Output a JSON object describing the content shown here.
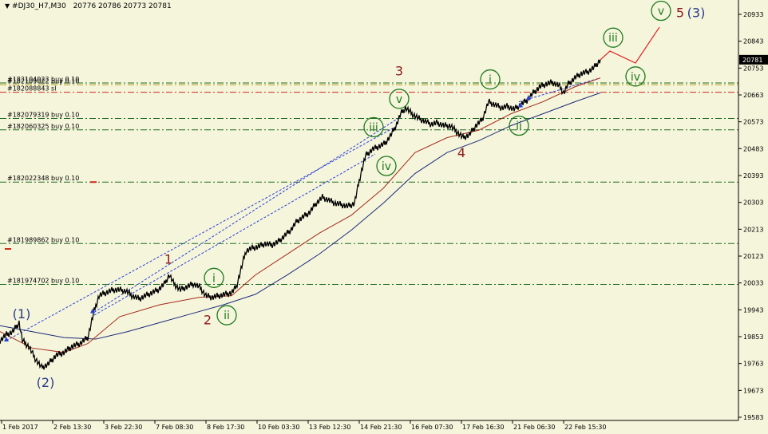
{
  "header": {
    "symbol": "#DJ30_H7,M30",
    "ohlc": "20776 20786 20773 20781"
  },
  "chart_data": {
    "type": "line",
    "title": "#DJ30_H7,M30",
    "ylim": [
      19583,
      20990
    ],
    "y_ticks": [
      "20933",
      "20843",
      "20753",
      "20663",
      "20573",
      "20483",
      "20393",
      "20303",
      "20213",
      "20123",
      "20033",
      "19943",
      "19853",
      "19763",
      "19673",
      "19583"
    ],
    "x_ticks": [
      "1 Feb 2017",
      "2 Feb 13:30",
      "3 Feb 22:30",
      "7 Feb 08:30",
      "8 Feb 17:30",
      "10 Feb 03:30",
      "13 Feb 12:30",
      "14 Feb 21:30",
      "16 Feb 07:30",
      "17 Feb 16:30",
      "21 Feb 06:30",
      "22 Feb 15:30"
    ],
    "current_price": "20781",
    "price_path": [
      [
        0,
        19840
      ],
      [
        8,
        19860
      ],
      [
        16,
        19870
      ],
      [
        24,
        19900
      ],
      [
        28,
        19840
      ],
      [
        36,
        19820
      ],
      [
        44,
        19780
      ],
      [
        52,
        19750
      ],
      [
        60,
        19760
      ],
      [
        70,
        19790
      ],
      [
        80,
        19800
      ],
      [
        90,
        19820
      ],
      [
        100,
        19830
      ],
      [
        110,
        19850
      ],
      [
        118,
        19940
      ],
      [
        124,
        19990
      ],
      [
        132,
        20000
      ],
      [
        142,
        20010
      ],
      [
        150,
        20010
      ],
      [
        158,
        20005
      ],
      [
        166,
        19990
      ],
      [
        174,
        19980
      ],
      [
        182,
        19990
      ],
      [
        190,
        20000
      ],
      [
        198,
        20010
      ],
      [
        206,
        20030
      ],
      [
        212,
        20060
      ],
      [
        218,
        20030
      ],
      [
        226,
        20010
      ],
      [
        234,
        20020
      ],
      [
        242,
        20030
      ],
      [
        250,
        20020
      ],
      [
        258,
        19990
      ],
      [
        266,
        19985
      ],
      [
        274,
        19990
      ],
      [
        282,
        19995
      ],
      [
        290,
        20000
      ],
      [
        296,
        20020
      ],
      [
        302,
        20080
      ],
      [
        308,
        20140
      ],
      [
        316,
        20150
      ],
      [
        324,
        20155
      ],
      [
        332,
        20165
      ],
      [
        340,
        20160
      ],
      [
        348,
        20170
      ],
      [
        356,
        20190
      ],
      [
        364,
        20210
      ],
      [
        372,
        20240
      ],
      [
        380,
        20255
      ],
      [
        388,
        20270
      ],
      [
        396,
        20300
      ],
      [
        404,
        20320
      ],
      [
        412,
        20310
      ],
      [
        420,
        20300
      ],
      [
        428,
        20295
      ],
      [
        436,
        20290
      ],
      [
        444,
        20300
      ],
      [
        452,
        20400
      ],
      [
        458,
        20460
      ],
      [
        466,
        20480
      ],
      [
        474,
        20490
      ],
      [
        482,
        20500
      ],
      [
        490,
        20530
      ],
      [
        496,
        20560
      ],
      [
        502,
        20600
      ],
      [
        508,
        20620
      ],
      [
        516,
        20600
      ],
      [
        524,
        20585
      ],
      [
        532,
        20575
      ],
      [
        540,
        20565
      ],
      [
        548,
        20570
      ],
      [
        556,
        20560
      ],
      [
        564,
        20560
      ],
      [
        572,
        20540
      ],
      [
        580,
        20520
      ],
      [
        588,
        20530
      ],
      [
        596,
        20560
      ],
      [
        604,
        20580
      ],
      [
        612,
        20640
      ],
      [
        620,
        20630
      ],
      [
        628,
        20620
      ],
      [
        636,
        20625
      ],
      [
        644,
        20615
      ],
      [
        652,
        20630
      ],
      [
        660,
        20645
      ],
      [
        668,
        20670
      ],
      [
        676,
        20690
      ],
      [
        684,
        20700
      ],
      [
        692,
        20705
      ],
      [
        700,
        20695
      ],
      [
        706,
        20670
      ],
      [
        712,
        20700
      ],
      [
        720,
        20720
      ],
      [
        728,
        20735
      ],
      [
        736,
        20740
      ],
      [
        744,
        20755
      ],
      [
        752,
        20781
      ]
    ],
    "ma_red": [
      [
        0,
        19870
      ],
      [
        40,
        19815
      ],
      [
        80,
        19800
      ],
      [
        110,
        19830
      ],
      [
        150,
        19920
      ],
      [
        200,
        19960
      ],
      [
        250,
        19985
      ],
      [
        290,
        19990
      ],
      [
        320,
        20060
      ],
      [
        360,
        20130
      ],
      [
        400,
        20200
      ],
      [
        440,
        20260
      ],
      [
        480,
        20350
      ],
      [
        520,
        20470
      ],
      [
        560,
        20520
      ],
      [
        600,
        20545
      ],
      [
        640,
        20600
      ],
      [
        680,
        20640
      ],
      [
        720,
        20690
      ],
      [
        752,
        20720
      ]
    ],
    "ma_blue": [
      [
        0,
        19890
      ],
      [
        40,
        19870
      ],
      [
        80,
        19850
      ],
      [
        120,
        19845
      ],
      [
        160,
        19870
      ],
      [
        200,
        19900
      ],
      [
        240,
        19930
      ],
      [
        280,
        19960
      ],
      [
        320,
        19995
      ],
      [
        360,
        20060
      ],
      [
        400,
        20130
      ],
      [
        440,
        20210
      ],
      [
        480,
        20300
      ],
      [
        520,
        20400
      ],
      [
        560,
        20470
      ],
      [
        600,
        20510
      ],
      [
        640,
        20560
      ],
      [
        680,
        20600
      ],
      [
        720,
        20640
      ],
      [
        752,
        20670
      ]
    ],
    "projection": [
      [
        752,
        20781
      ],
      [
        764,
        20810
      ],
      [
        796,
        20770
      ],
      [
        826,
        20890
      ]
    ],
    "trend_lines": [
      {
        "points": [
          [
            8,
            19840
          ],
          [
            498,
            20560
          ]
        ]
      },
      {
        "points": [
          [
            118,
            19935
          ],
          [
            502,
            20590
          ]
        ]
      },
      {
        "points": [
          [
            118,
            19925
          ],
          [
            470,
            20465
          ]
        ]
      },
      {
        "points": [
          [
            650,
            20640
          ],
          [
            752,
            20720
          ]
        ]
      }
    ],
    "order_lines": [
      {
        "label": "#183104023 buy 0.10",
        "y": 20703,
        "color": "#1f6b1f",
        "style": "dashdot"
      },
      {
        "label": "#182109022 buy 0.10",
        "y": 20697,
        "color": "#b3a21c",
        "style": "dashdot"
      },
      {
        "label": "#182088843 sl",
        "y": 20672,
        "color": "#cc2a1a",
        "style": "dashdot"
      },
      {
        "label": "#182079319 buy 0.10",
        "y": 20584,
        "color": "#1f6b1f",
        "style": "dashdot"
      },
      {
        "label": "#182060325 buy 0.10",
        "y": 20546,
        "color": "#1f6b1f",
        "style": "dashdot"
      },
      {
        "label": "#182022348 buy 0.10",
        "y": 20371,
        "color": "#1f6b1f",
        "style": "dashdot"
      },
      {
        "label": "#181989862 buy 0.10",
        "y": 20165,
        "color": "#1f6b1f",
        "style": "dashdot"
      },
      {
        "label": "#181974702 buy 0.10",
        "y": 20028,
        "color": "#1f6b1f",
        "style": "dashdot"
      }
    ],
    "wave_labels": [
      {
        "text": "(1)",
        "px": 27,
        "y": 19930,
        "color": "#2b3a8c",
        "circle": false
      },
      {
        "text": "(2)",
        "px": 57,
        "y": 19700,
        "color": "#2b3a8c",
        "circle": false
      },
      {
        "text": "1",
        "px": 211,
        "y": 20113,
        "color": "#8b1a1a",
        "circle": false
      },
      {
        "text": "2",
        "px": 260,
        "y": 19910,
        "color": "#8b1a1a",
        "circle": false
      },
      {
        "text": "3",
        "px": 500,
        "y": 20745,
        "color": "#8b1a1a",
        "circle": false
      },
      {
        "text": "4",
        "px": 578,
        "y": 20470,
        "color": "#8b1a1a",
        "circle": false
      },
      {
        "text": "5",
        "px": 852,
        "y": 20940,
        "color": "#8b1a1a",
        "circle": false
      },
      {
        "text": "(3)",
        "px": 872,
        "y": 20940,
        "color": "#2b3a8c",
        "circle": false
      },
      {
        "text": "i",
        "px": 268,
        "y": 20050,
        "color": "#1e7a1e",
        "circle": true
      },
      {
        "text": "ii",
        "px": 284,
        "y": 19925,
        "color": "#1e7a1e",
        "circle": true
      },
      {
        "text": "iii",
        "px": 468,
        "y": 20555,
        "color": "#1e7a1e",
        "circle": true
      },
      {
        "text": "iv",
        "px": 484,
        "y": 20425,
        "color": "#1e7a1e",
        "circle": true
      },
      {
        "text": "v",
        "px": 500,
        "y": 20650,
        "color": "#1e7a1e",
        "circle": true
      },
      {
        "text": "i",
        "px": 614,
        "y": 20715,
        "color": "#1e7a1e",
        "circle": true
      },
      {
        "text": "ii",
        "px": 650,
        "y": 20560,
        "color": "#1e7a1e",
        "circle": true
      },
      {
        "text": "iii",
        "px": 768,
        "y": 20855,
        "color": "#1e7a1e",
        "circle": true
      },
      {
        "text": "iv",
        "px": 796,
        "y": 20725,
        "color": "#1e7a1e",
        "circle": true
      },
      {
        "text": "v",
        "px": 828,
        "y": 20945,
        "color": "#1e7a1e",
        "circle": true
      }
    ],
    "arrow_markers": [
      {
        "px": 8,
        "y": 19845
      },
      {
        "px": 116,
        "y": 19940
      },
      {
        "px": 652,
        "y": 20630
      },
      {
        "px": 662,
        "y": 20655
      }
    ],
    "small_order_marks": [
      {
        "px": 117,
        "y": 20371,
        "color": "#cc2a1a"
      },
      {
        "px": 10,
        "y": 20147,
        "color": "#cc2a1a"
      }
    ]
  }
}
